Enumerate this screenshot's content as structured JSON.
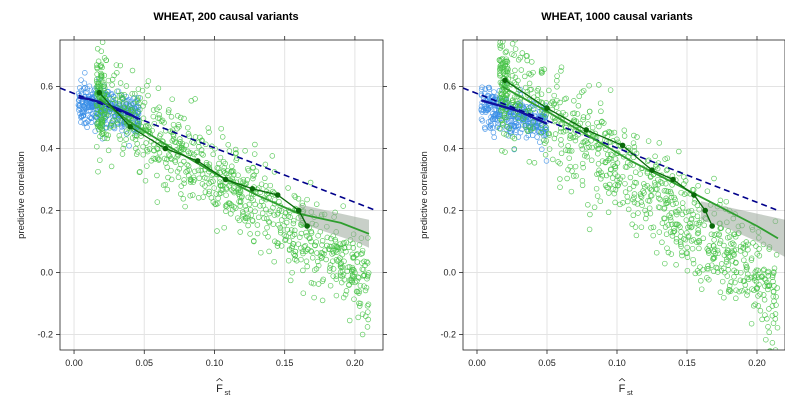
{
  "chart_data": [
    {
      "type": "scatter",
      "title": "WHEAT, 200 causal variants",
      "xlabel": "F",
      "xlabel_sub": "st",
      "ylabel": "predictive correlation",
      "xlim": [
        -0.01,
        0.22
      ],
      "ylim": [
        -0.25,
        0.75
      ],
      "xticks": [
        0.0,
        0.05,
        0.1,
        0.15,
        0.2
      ],
      "xtick_labels": [
        "0.00",
        "0.05",
        "0.10",
        "0.15",
        "0.20"
      ],
      "yticks": [
        -0.2,
        0.0,
        0.2,
        0.4,
        0.6
      ],
      "ytick_labels": [
        "-0.2",
        "0.0",
        "0.2",
        "0.4",
        "0.6"
      ],
      "grid": true,
      "series": [
        {
          "role": "points-blue",
          "color": "#3a8ee6",
          "n": 350,
          "x_range": [
            0.003,
            0.046
          ],
          "y_center": 0.55,
          "y_slope": -1.0,
          "y_sd": 0.03
        },
        {
          "role": "points-green",
          "color": "#43c243",
          "n": 900,
          "x_range": [
            0.016,
            0.21
          ],
          "y_model": "quadratic",
          "coef": [
            0.6,
            -2.5,
            -3.0
          ],
          "y_sd": 0.07
        },
        {
          "role": "dashed-line",
          "color": "#00008b",
          "x": [
            -0.01,
            0.215
          ],
          "y": [
            0.595,
            0.2
          ]
        },
        {
          "role": "blue-smooth",
          "color": "#1010a0",
          "x": [
            0.003,
            0.01,
            0.02,
            0.03,
            0.04,
            0.046
          ],
          "y": [
            0.565,
            0.56,
            0.548,
            0.53,
            0.51,
            0.495
          ]
        },
        {
          "role": "green-smooth-light",
          "color": "#2f9e2f",
          "x": [
            0.018,
            0.04,
            0.07,
            0.1,
            0.13,
            0.16,
            0.19,
            0.21
          ],
          "y": [
            0.56,
            0.485,
            0.4,
            0.32,
            0.25,
            0.19,
            0.16,
            0.125
          ]
        },
        {
          "role": "green-binned-dark",
          "color": "#0a6a0a",
          "x": [
            0.018,
            0.04,
            0.065,
            0.088,
            0.108,
            0.127,
            0.145,
            0.16,
            0.166
          ],
          "y": [
            0.58,
            0.47,
            0.4,
            0.36,
            0.3,
            0.27,
            0.25,
            0.2,
            0.15
          ]
        }
      ],
      "ci_band": {
        "color": "#9aa89a",
        "x": [
          0.16,
          0.18,
          0.2,
          0.21
        ],
        "lower": [
          0.16,
          0.13,
          0.1,
          0.08
        ],
        "upper": [
          0.22,
          0.2,
          0.18,
          0.17
        ]
      }
    },
    {
      "type": "scatter",
      "title": "WHEAT, 1000 causal variants",
      "xlabel": "F",
      "xlabel_sub": "st",
      "ylabel": "predictive correlation",
      "xlim": [
        -0.01,
        0.22
      ],
      "ylim": [
        -0.25,
        0.75
      ],
      "xticks": [
        0.0,
        0.05,
        0.1,
        0.15,
        0.2
      ],
      "xtick_labels": [
        "0.00",
        "0.05",
        "0.10",
        "0.15",
        "0.20"
      ],
      "yticks": [
        -0.2,
        0.0,
        0.2,
        0.4,
        0.6
      ],
      "ytick_labels": [
        "-0.2",
        "0.0",
        "0.2",
        "0.4",
        "0.6"
      ],
      "grid": true,
      "series": [
        {
          "role": "points-blue",
          "color": "#3a8ee6",
          "n": 320,
          "x_range": [
            0.003,
            0.05
          ],
          "y_center": 0.54,
          "y_slope": -1.2,
          "y_sd": 0.035
        },
        {
          "role": "points-green",
          "color": "#43c243",
          "n": 900,
          "x_range": [
            0.016,
            0.215
          ],
          "y_model": "quadratic",
          "coef": [
            0.66,
            -2.9,
            -2.5
          ],
          "y_sd": 0.08
        },
        {
          "role": "dashed-line",
          "color": "#00008b",
          "x": [
            -0.01,
            0.215
          ],
          "y": [
            0.595,
            0.2
          ]
        },
        {
          "role": "blue-smooth",
          "color": "#1010a0",
          "x": [
            0.003,
            0.015,
            0.03,
            0.04,
            0.05
          ],
          "y": [
            0.555,
            0.54,
            0.52,
            0.5,
            0.48
          ]
        },
        {
          "role": "green-smooth-light",
          "color": "#2f9e2f",
          "x": [
            0.018,
            0.05,
            0.08,
            0.11,
            0.14,
            0.17,
            0.2,
            0.215
          ],
          "y": [
            0.6,
            0.52,
            0.44,
            0.36,
            0.29,
            0.22,
            0.15,
            0.11
          ]
        },
        {
          "role": "green-binned-dark",
          "color": "#0a6a0a",
          "x": [
            0.02,
            0.05,
            0.078,
            0.104,
            0.125,
            0.14,
            0.155,
            0.163,
            0.168
          ],
          "y": [
            0.62,
            0.53,
            0.46,
            0.41,
            0.33,
            0.3,
            0.25,
            0.2,
            0.15
          ]
        }
      ],
      "ci_band": {
        "color": "#9aa89a",
        "x": [
          0.16,
          0.18,
          0.2,
          0.22
        ],
        "lower": [
          0.17,
          0.14,
          0.1,
          0.05
        ],
        "upper": [
          0.23,
          0.21,
          0.19,
          0.17
        ]
      }
    }
  ]
}
